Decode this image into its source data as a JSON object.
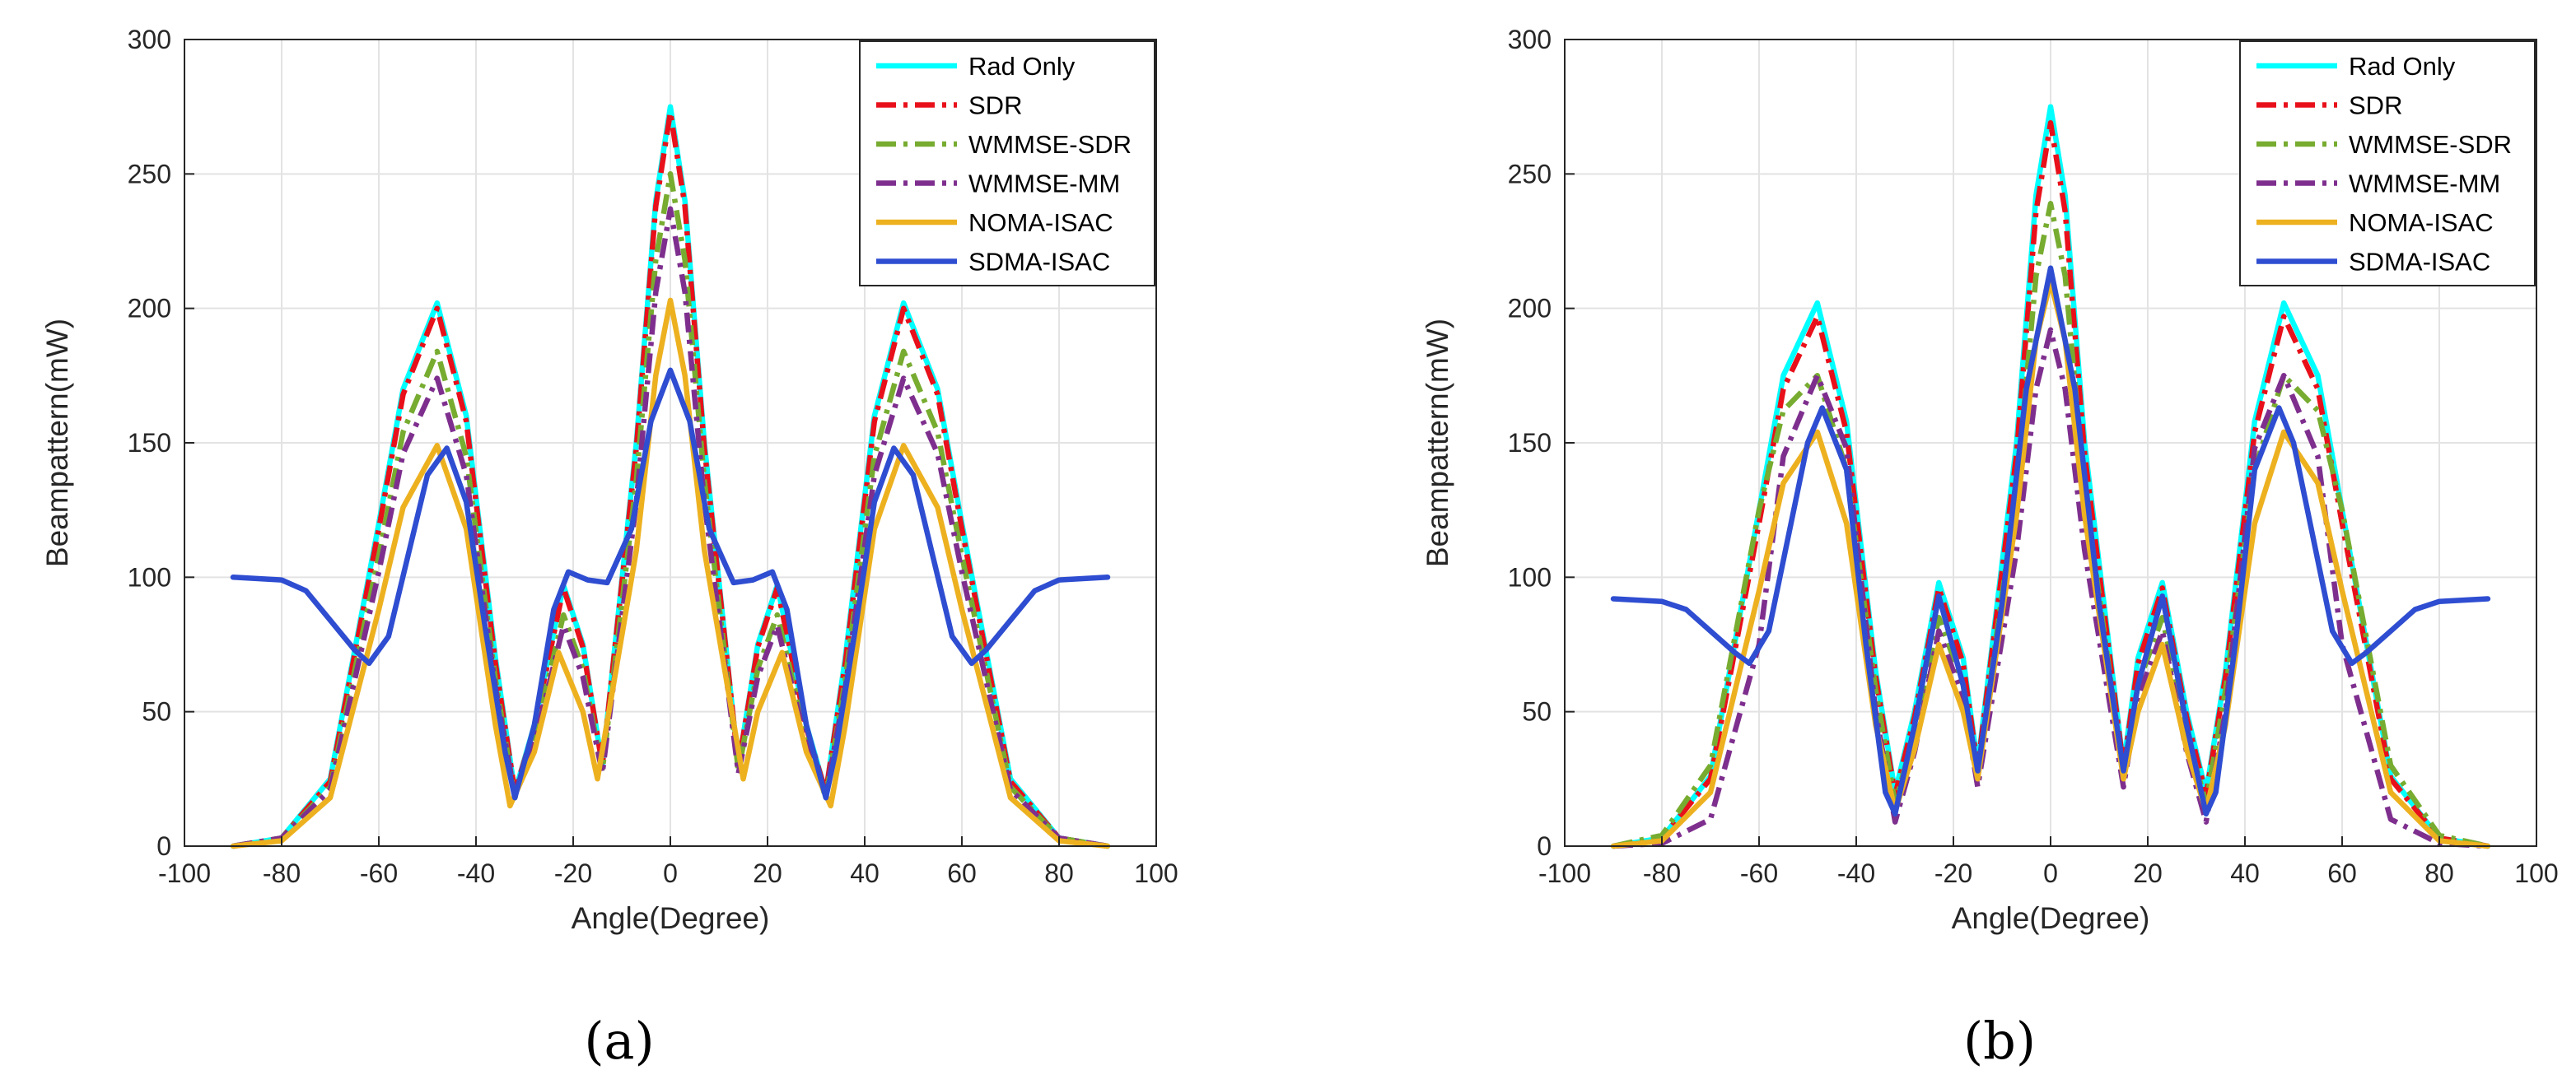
{
  "figure": {
    "panel_captions": [
      "(a)",
      "(b)"
    ]
  },
  "chart_data": [
    {
      "type": "line",
      "panel": "(a)",
      "title": "",
      "xlabel": "Angle(Degree)",
      "ylabel": "Beampattern(mW)",
      "xlim": [
        -100,
        100
      ],
      "ylim": [
        0,
        300
      ],
      "xticks": [
        -100,
        -80,
        -60,
        -40,
        -20,
        0,
        20,
        40,
        60,
        80,
        100
      ],
      "yticks": [
        0,
        50,
        100,
        150,
        200,
        250,
        300
      ],
      "grid": true,
      "legend_position": "top-right",
      "series": [
        {
          "name": "Rad Only",
          "color": "#00FFFF",
          "dash": "solid",
          "x": [
            -90,
            -80,
            -70,
            -60,
            -55,
            -48,
            -42,
            -36,
            -32,
            -28,
            -22,
            -18,
            -14,
            -7,
            -3,
            0,
            3,
            7,
            14,
            18,
            22,
            28,
            32,
            36,
            42,
            48,
            55,
            60,
            70,
            80,
            90
          ],
          "y": [
            0,
            3,
            25,
            120,
            170,
            202,
            160,
            70,
            20,
            45,
            97,
            75,
            30,
            150,
            240,
            275,
            240,
            150,
            30,
            75,
            97,
            45,
            20,
            70,
            160,
            202,
            170,
            120,
            25,
            3,
            0
          ]
        },
        {
          "name": "SDR",
          "color": "#E8101A",
          "dash": "dashdot",
          "x": [
            -90,
            -80,
            -70,
            -60,
            -55,
            -48,
            -42,
            -36,
            -32,
            -28,
            -22,
            -18,
            -14,
            -7,
            -3,
            0,
            3,
            7,
            14,
            18,
            22,
            28,
            32,
            36,
            42,
            48,
            55,
            60,
            70,
            80,
            90
          ],
          "y": [
            0,
            3,
            24,
            118,
            168,
            200,
            158,
            68,
            20,
            44,
            96,
            74,
            30,
            148,
            238,
            273,
            238,
            148,
            30,
            74,
            96,
            44,
            20,
            68,
            158,
            200,
            168,
            118,
            24,
            3,
            0
          ]
        },
        {
          "name": "WMMSE-SDR",
          "color": "#77AC30",
          "dash": "dashdot",
          "x": [
            -90,
            -80,
            -70,
            -60,
            -55,
            -48,
            -42,
            -36,
            -32,
            -28,
            -22,
            -18,
            -14,
            -7,
            -3,
            0,
            3,
            7,
            14,
            18,
            22,
            28,
            32,
            36,
            42,
            48,
            55,
            60,
            70,
            80,
            90
          ],
          "y": [
            0,
            3,
            22,
            108,
            154,
            184,
            145,
            62,
            18,
            40,
            86,
            66,
            28,
            136,
            218,
            250,
            218,
            136,
            28,
            66,
            86,
            40,
            18,
            62,
            145,
            184,
            154,
            108,
            22,
            3,
            0
          ]
        },
        {
          "name": "WMMSE-MM",
          "color": "#7E2F8E",
          "dash": "dashdot",
          "x": [
            -90,
            -80,
            -70,
            -60,
            -55,
            -48,
            -42,
            -36,
            -32,
            -28,
            -22,
            -18,
            -14,
            -7,
            -3,
            0,
            3,
            7,
            14,
            18,
            22,
            28,
            32,
            36,
            42,
            48,
            55,
            60,
            70,
            80,
            90
          ],
          "y": [
            0,
            3,
            21,
            102,
            146,
            174,
            138,
            59,
            19,
            38,
            82,
            63,
            27,
            128,
            206,
            237,
            206,
            128,
            27,
            63,
            82,
            38,
            19,
            59,
            138,
            174,
            146,
            102,
            21,
            3,
            0
          ]
        },
        {
          "name": "NOMA-ISAC",
          "color": "#EDB120",
          "dash": "solid",
          "x": [
            -90,
            -80,
            -70,
            -60,
            -55,
            -48,
            -42,
            -36,
            -33,
            -28,
            -23,
            -18,
            -15,
            -7,
            -3,
            0,
            3,
            7,
            15,
            18,
            23,
            28,
            33,
            36,
            42,
            48,
            55,
            60,
            70,
            80,
            90
          ],
          "y": [
            0,
            2,
            18,
            88,
            126,
            149,
            118,
            45,
            15,
            35,
            72,
            50,
            25,
            110,
            175,
            203,
            175,
            110,
            25,
            50,
            72,
            35,
            15,
            45,
            118,
            149,
            126,
            88,
            18,
            2,
            0
          ]
        },
        {
          "name": "SDMA-ISAC",
          "color": "#2E4DD1",
          "dash": "solid",
          "x": [
            -90,
            -80,
            -75,
            -70,
            -65,
            -62,
            -58,
            -54,
            -50,
            -46,
            -42,
            -38,
            -34,
            -32,
            -28,
            -24,
            -21,
            -17,
            -13,
            -8,
            -4,
            0,
            4,
            8,
            13,
            17,
            21,
            24,
            28,
            32,
            34,
            38,
            42,
            46,
            50,
            54,
            58,
            62,
            65,
            70,
            75,
            80,
            90
          ],
          "y": [
            100,
            99,
            95,
            84,
            73,
            68,
            78,
            108,
            138,
            148,
            128,
            80,
            35,
            18,
            45,
            88,
            102,
            99,
            98,
            118,
            158,
            177,
            158,
            118,
            98,
            99,
            102,
            88,
            45,
            18,
            35,
            80,
            128,
            148,
            138,
            108,
            78,
            68,
            73,
            84,
            95,
            99,
            100
          ]
        }
      ]
    },
    {
      "type": "line",
      "panel": "(b)",
      "title": "",
      "xlabel": "Angle(Degree)",
      "ylabel": "Beampattern(mW)",
      "xlim": [
        -100,
        100
      ],
      "ylim": [
        0,
        300
      ],
      "xticks": [
        -100,
        -80,
        -60,
        -40,
        -20,
        0,
        20,
        40,
        60,
        80,
        100
      ],
      "yticks": [
        0,
        50,
        100,
        150,
        200,
        250,
        300
      ],
      "grid": true,
      "legend_position": "top-right",
      "series": [
        {
          "name": "Rad Only",
          "color": "#00FFFF",
          "dash": "solid",
          "x": [
            -90,
            -80,
            -70,
            -60,
            -55,
            -48,
            -42,
            -36,
            -32,
            -28,
            -23,
            -18,
            -15,
            -7,
            -3,
            0,
            3,
            7,
            15,
            18,
            23,
            28,
            32,
            36,
            42,
            48,
            55,
            60,
            70,
            80,
            90
          ],
          "y": [
            0,
            3,
            26,
            125,
            175,
            202,
            158,
            65,
            20,
            50,
            98,
            70,
            30,
            150,
            242,
            275,
            242,
            150,
            30,
            70,
            98,
            50,
            20,
            65,
            158,
            202,
            175,
            125,
            26,
            3,
            0
          ]
        },
        {
          "name": "SDR",
          "color": "#E8101A",
          "dash": "dashdot",
          "x": [
            -90,
            -80,
            -70,
            -60,
            -55,
            -48,
            -42,
            -36,
            -32,
            -28,
            -23,
            -18,
            -15,
            -7,
            -3,
            0,
            3,
            7,
            15,
            18,
            23,
            28,
            32,
            36,
            42,
            48,
            55,
            60,
            70,
            80,
            90
          ],
          "y": [
            0,
            3,
            25,
            120,
            170,
            197,
            154,
            63,
            19,
            48,
            96,
            68,
            29,
            146,
            236,
            269,
            236,
            146,
            29,
            68,
            96,
            48,
            19,
            63,
            154,
            197,
            170,
            120,
            25,
            3,
            0
          ]
        },
        {
          "name": "WMMSE-SDR",
          "color": "#77AC30",
          "dash": "dashdot",
          "x": [
            -90,
            -80,
            -70,
            -60,
            -55,
            -48,
            -42,
            -36,
            -32,
            -28,
            -23,
            -18,
            -15,
            -7,
            -3,
            0,
            3,
            7,
            15,
            18,
            23,
            28,
            32,
            36,
            42,
            48,
            55,
            60,
            70,
            80,
            90
          ],
          "y": [
            0,
            4,
            30,
            125,
            162,
            175,
            140,
            58,
            16,
            42,
            85,
            60,
            27,
            133,
            212,
            239,
            212,
            133,
            27,
            60,
            85,
            42,
            16,
            58,
            140,
            175,
            162,
            125,
            30,
            4,
            0
          ]
        },
        {
          "name": "WMMSE-MM",
          "color": "#7E2F8E",
          "dash": "dashdot",
          "x": [
            -90,
            -80,
            -70,
            -60,
            -55,
            -48,
            -42,
            -36,
            -32,
            -28,
            -23,
            -18,
            -15,
            -7,
            -3,
            0,
            3,
            7,
            15,
            18,
            23,
            28,
            32,
            36,
            42,
            48,
            55,
            60,
            70,
            80,
            90
          ],
          "y": [
            0,
            1,
            10,
            75,
            145,
            175,
            148,
            50,
            9,
            35,
            80,
            55,
            22,
            110,
            170,
            192,
            170,
            110,
            22,
            55,
            80,
            35,
            9,
            50,
            148,
            175,
            145,
            75,
            10,
            1,
            0
          ]
        },
        {
          "name": "NOMA-ISAC",
          "color": "#EDB120",
          "dash": "solid",
          "x": [
            -90,
            -80,
            -70,
            -60,
            -55,
            -48,
            -42,
            -36,
            -32,
            -28,
            -23,
            -18,
            -15,
            -7,
            -3,
            0,
            3,
            7,
            15,
            18,
            23,
            28,
            32,
            36,
            42,
            48,
            55,
            60,
            70,
            80,
            90
          ],
          "y": [
            0,
            2,
            20,
            95,
            135,
            154,
            120,
            45,
            13,
            36,
            75,
            50,
            25,
            123,
            188,
            210,
            188,
            123,
            25,
            50,
            75,
            36,
            13,
            45,
            120,
            154,
            135,
            95,
            20,
            2,
            0
          ]
        },
        {
          "name": "SDMA-ISAC",
          "color": "#2E4DD1",
          "dash": "solid",
          "x": [
            -90,
            -80,
            -75,
            -70,
            -65,
            -62,
            -58,
            -54,
            -50,
            -47,
            -42,
            -38,
            -34,
            -32,
            -28,
            -23,
            -18,
            -15,
            -10,
            -5,
            0,
            5,
            10,
            15,
            18,
            23,
            28,
            32,
            34,
            38,
            42,
            47,
            50,
            54,
            58,
            62,
            65,
            70,
            75,
            80,
            90
          ],
          "y": [
            92,
            91,
            88,
            80,
            72,
            68,
            80,
            115,
            150,
            163,
            140,
            75,
            20,
            12,
            45,
            93,
            60,
            28,
            90,
            170,
            215,
            170,
            90,
            28,
            60,
            93,
            45,
            12,
            20,
            75,
            140,
            163,
            150,
            115,
            80,
            68,
            72,
            80,
            88,
            91,
            92
          ]
        }
      ]
    }
  ]
}
